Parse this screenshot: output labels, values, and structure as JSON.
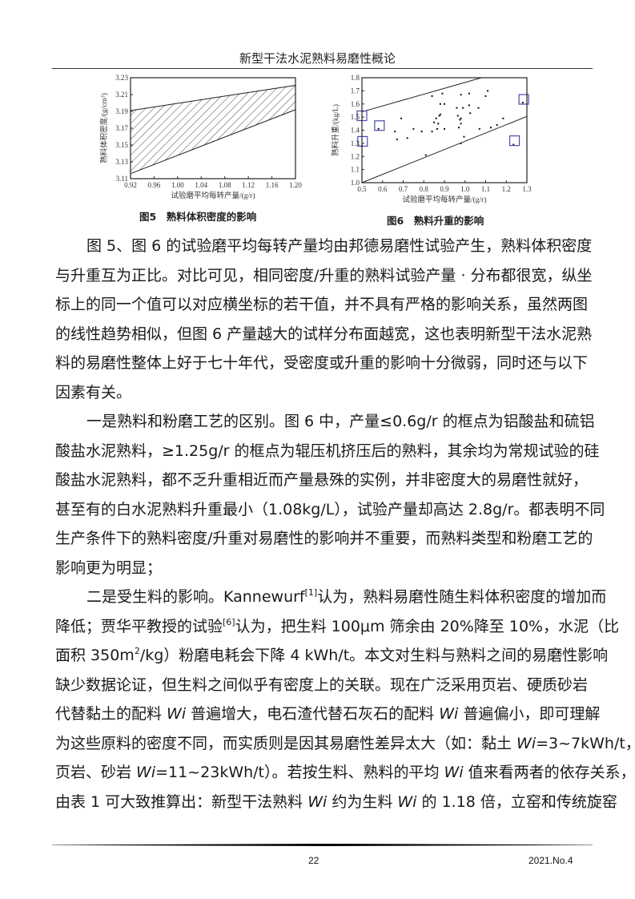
{
  "header": {
    "running_title": "新型干法水泥熟料易磨性概论"
  },
  "figures": {
    "fig5": {
      "caption": "图5　熟料体积密度的影响"
    },
    "fig6": {
      "caption": "图6　熟料升重的影响"
    }
  },
  "chart_data": [
    {
      "type": "area",
      "style": "hatched band between two lines",
      "xlabel": "试验磨平均每转产量/(g/r)",
      "ylabel": "熟料体积密度/(g/cm³)",
      "xlim": [
        0.92,
        1.2
      ],
      "ylim": [
        3.11,
        3.23
      ],
      "xticks": [
        "0.92",
        "0.96",
        "1.00",
        "1.04",
        "1.08",
        "1.12",
        "1.16",
        "1.20"
      ],
      "yticks": [
        "3.11",
        "3.13",
        "3.15",
        "3.17",
        "3.19",
        "3.21",
        "3.23"
      ],
      "upper_line": [
        [
          0.92,
          3.191
        ],
        [
          1.2,
          3.221
        ]
      ],
      "lower_line": [
        [
          0.92,
          3.116
        ],
        [
          1.2,
          3.192
        ]
      ],
      "grid": false
    },
    {
      "type": "scatter",
      "xlabel": "试验磨平均每转产量/(g/r)",
      "ylabel": "熟料升重/(kg/L)",
      "xlim": [
        0.5,
        1.3
      ],
      "ylim": [
        1.0,
        1.8
      ],
      "xticks": [
        "0.5",
        "0.6",
        "0.7",
        "0.8",
        "0.9",
        "1.0",
        "1.1",
        "1.2",
        "1.3"
      ],
      "yticks": [
        "1.0",
        "1.1",
        "1.2",
        "1.3",
        "1.4",
        "1.5",
        "1.6",
        "1.7",
        "1.8"
      ],
      "points": [
        [
          0.5,
          1.28
        ],
        [
          0.58,
          1.41
        ],
        [
          0.66,
          1.39
        ],
        [
          0.67,
          1.33
        ],
        [
          0.69,
          1.49
        ],
        [
          0.72,
          1.34
        ],
        [
          0.75,
          1.41
        ],
        [
          0.79,
          1.39
        ],
        [
          0.81,
          1.21
        ],
        [
          0.84,
          1.39
        ],
        [
          0.84,
          1.66
        ],
        [
          0.85,
          1.46
        ],
        [
          0.86,
          1.49
        ],
        [
          0.865,
          1.41
        ],
        [
          0.87,
          1.45
        ],
        [
          0.875,
          1.51
        ],
        [
          0.88,
          1.52
        ],
        [
          0.88,
          1.6
        ],
        [
          0.89,
          1.68
        ],
        [
          0.9,
          1.6
        ],
        [
          0.9,
          1.41
        ],
        [
          0.96,
          1.57
        ],
        [
          0.965,
          1.51
        ],
        [
          0.97,
          1.42
        ],
        [
          0.975,
          1.48
        ],
        [
          0.98,
          1.67
        ],
        [
          0.98,
          1.45
        ],
        [
          0.98,
          1.49
        ],
        [
          0.98,
          1.3
        ],
        [
          0.99,
          1.57
        ],
        [
          0.995,
          1.35
        ],
        [
          1.02,
          1.68
        ],
        [
          1.02,
          1.59
        ],
        [
          1.025,
          1.53
        ],
        [
          1.065,
          1.57
        ],
        [
          1.07,
          1.41
        ],
        [
          1.1,
          1.66
        ],
        [
          1.11,
          1.7
        ],
        [
          1.125,
          1.42
        ],
        [
          1.155,
          1.44
        ],
        [
          1.185,
          1.49
        ],
        [
          1.235,
          1.29
        ],
        [
          1.28,
          1.61
        ]
      ],
      "boxed_points": [
        [
          0.5,
          1.51
        ],
        [
          0.585,
          1.435
        ],
        [
          0.503,
          1.315
        ],
        [
          1.24,
          1.32
        ],
        [
          1.285,
          1.635
        ]
      ],
      "upper_line": [
        [
          0.5,
          1.54
        ],
        [
          1.08,
          1.8
        ]
      ],
      "lower_line": [
        [
          0.5,
          1.0
        ],
        [
          1.3,
          1.505
        ]
      ],
      "box_color": "#4a4ab0",
      "grid": false
    }
  ],
  "body": {
    "p1": [
      "图 5、图 6 的试验磨平均每转产量均由邦德易磨性试验产生，熟料体积密度",
      "与升重互为正比。对比可见，相同密度/升重的熟料试验产量 · 分布都很宽，纵坐",
      "标上的同一个值可以对应横坐标的若干值，并不具有严格的影响关系，虽然两图",
      "的线性趋势相似，但图 6 产量越大的试样分布面越宽，这也表明新型干法水泥熟",
      "料的易磨性整体上好于七十年代，受密度或升重的影响十分微弱，同时还与以下",
      "因素有关。"
    ],
    "p2": [
      "一是熟料和粉磨工艺的区别。图 6 中，产量≤0.6g/r 的框点为铝酸盐和硫铝",
      "酸盐水泥熟料，≥1.25g/r 的框点为辊压机挤压后的熟料，其余均为常规试验的硅",
      "酸盐水泥熟料，都不乏升重相近而产量悬殊的实例，并非密度大的易磨性就好，",
      "甚至有的白水泥熟料升重最小（1.08kg/L），试验产量却高达 2.8g/r。都表明不同",
      "生产条件下的熟料密度/升重对易磨性的影响并不重要，而熟料类型和粉磨工艺的",
      "影响更为明显；"
    ],
    "p3": {
      "l1a": "二是受生料的影响。Kannewurf",
      "l1sup": "[1]",
      "l1b": "认为，熟料易磨性随生料体积密度的增加而",
      "l2a": "降低；贾华平教授的试验",
      "l2sup": "[6]",
      "l2b": "认为，把生料 100μm 筛余由 20%降至 10%，水泥（比",
      "l3a": "面积 350m",
      "l3sup": "2",
      "l3b": "/kg）粉磨电耗会下降 4  kWh/t。本文对生料与熟料之间的易磨性影响",
      "l4": "缺少数据论证，但生料之间似乎有密度上的关联。现在广泛采用页岩、硬质砂岩",
      "l5a": "代替黏土的配料 ",
      "wi": "Wi",
      "l5b": " 普遍增大，电石渣代替石灰石的配料 ",
      "l5c": " 普遍偏小，即可理解",
      "l6a": "为这些原料的密度不同，而实质则是因其易磨性差异太大（如：黏土 ",
      "l6b": "=3~7kWh/t，",
      "l7a": "页岩、砂岩 ",
      "l7b": "=11~23kWh/t）。若按生料、熟料的平均 ",
      "l7c": " 值来看两者的依存关系，",
      "l8a": "由表 1 可大致推算出：新型干法熟料 ",
      "l8b": " 约为生料 ",
      "l8c": " 的 1.18 倍，立窑和传统旋窑"
    }
  },
  "footer": {
    "page_number": "22",
    "issue": "2021.No.4"
  }
}
